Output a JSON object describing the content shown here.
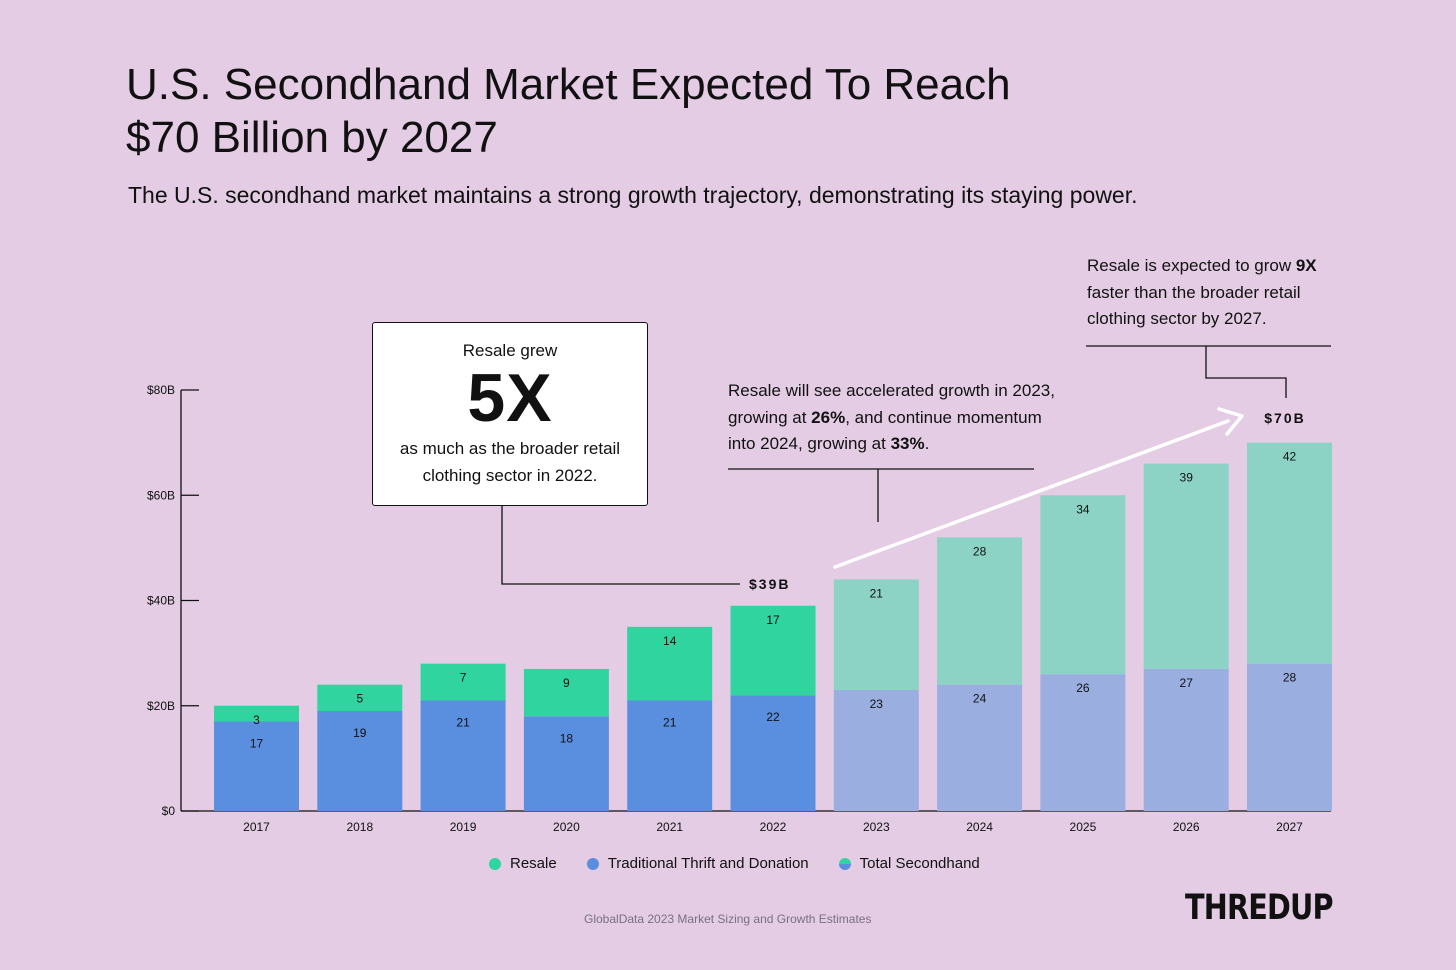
{
  "page": {
    "title_line1": "U.S. Secondhand Market Expected To Reach",
    "title_line2": "$70 Billion by 2027",
    "subtitle": "The U.S. secondhand market maintains a strong growth trajectory, demonstrating its staying power.",
    "source": "GlobalData 2023 Market Sizing and Growth Estimates",
    "logo_text": "THREDUP",
    "background": "#e4cde4"
  },
  "callout_5x": {
    "pre": "Resale grew",
    "big": "5X",
    "post": "as much as the broader retail clothing sector in 2022."
  },
  "note_2023": {
    "text1": "Resale will see accelerated growth in 2023, growing at ",
    "bold1": "26%",
    "text2": ", and continue momentum into 2024, growing at ",
    "bold2": "33%",
    "text3": "."
  },
  "note_9x": {
    "text1": "Resale is expected to grow ",
    "bold1": "9X",
    "text2": " faster than the broader retail clothing sector by 2027."
  },
  "labels": {
    "b39": "$39B",
    "b70": "$70B"
  },
  "legend": [
    {
      "label": "Resale",
      "color": "#2fd49f"
    },
    {
      "label": "Traditional Thrift and Donation",
      "color": "#5a8fe0"
    },
    {
      "label": "Total Secondhand",
      "color": "#2fd49f",
      "color2": "#5a8fe0"
    }
  ],
  "colors": {
    "resale_actual": "#2fd49f",
    "thrift_actual": "#5a8fe0",
    "resale_projected": "#8cd3c5",
    "thrift_projected": "#9aaee0"
  },
  "chart_data": {
    "type": "bar",
    "stacked": true,
    "categories": [
      "2017",
      "2018",
      "2019",
      "2020",
      "2021",
      "2022",
      "2023",
      "2024",
      "2025",
      "2026",
      "2027"
    ],
    "series": [
      {
        "name": "Traditional Thrift and Donation",
        "values": [
          17,
          19,
          21,
          18,
          21,
          22,
          23,
          24,
          26,
          27,
          28
        ]
      },
      {
        "name": "Resale",
        "values": [
          3,
          5,
          7,
          9,
          14,
          17,
          21,
          28,
          34,
          39,
          42
        ]
      }
    ],
    "projected_from": "2023",
    "yticks": [
      "$0",
      "$20B",
      "$40B",
      "$60B",
      "$80B"
    ],
    "ylim": [
      0,
      80
    ],
    "grid": false
  }
}
